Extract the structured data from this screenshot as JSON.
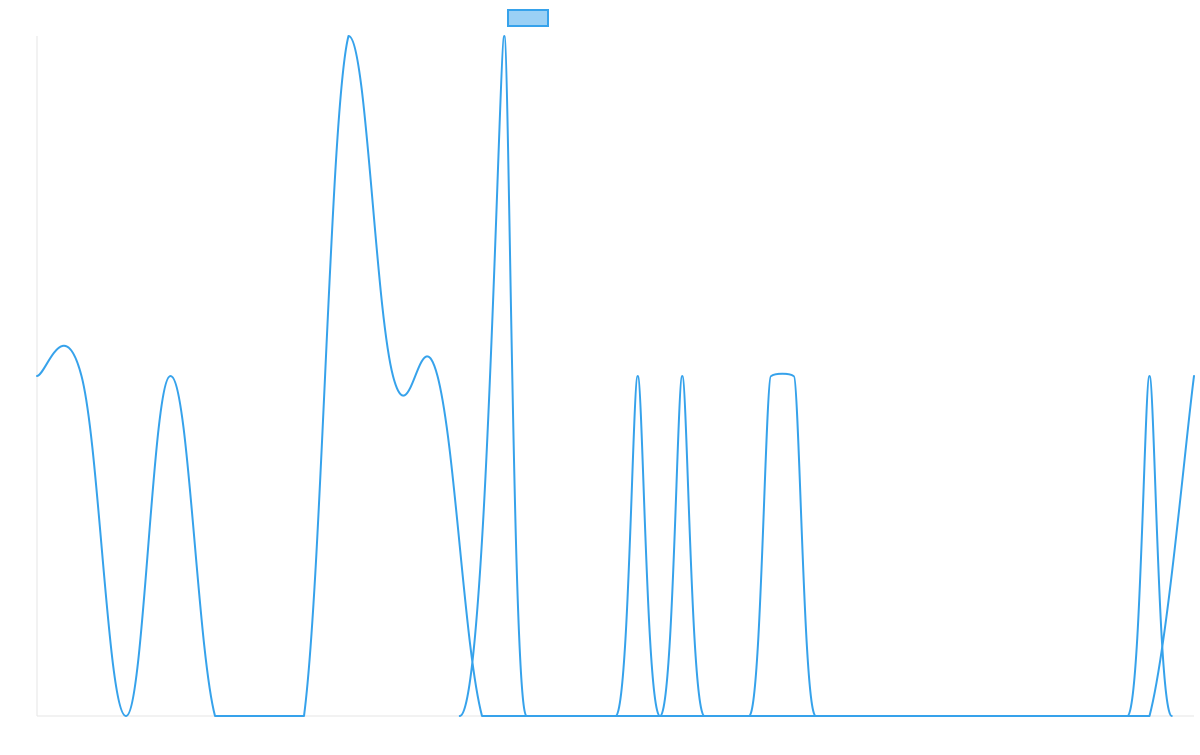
{
  "chart_data": {
    "type": "line",
    "title": "",
    "xlabel": "",
    "ylabel": "",
    "ylim": [
      0,
      2
    ],
    "grid": false,
    "legend_placement": "top-center",
    "x": [
      0,
      1,
      2,
      3,
      4,
      5,
      6,
      7,
      8,
      9,
      10,
      11,
      12,
      13,
      14,
      15,
      16,
      17,
      18,
      19,
      20,
      21,
      22,
      23,
      24,
      25,
      26
    ],
    "series": [
      {
        "name": "",
        "values": [
          1,
          1,
          0,
          1,
          0,
          0,
          0,
          2,
          1,
          1,
          0,
          0,
          0,
          0,
          0,
          0,
          0,
          0,
          0,
          0,
          0,
          0,
          0,
          0,
          0,
          0,
          1
        ],
        "color": "#36a2eb",
        "fill": "rgba(54,162,235,0.5)"
      }
    ],
    "smooth_spikes": [
      {
        "peak_x": 10.5,
        "peak_y": 2,
        "base_left_x": 9.5,
        "base_right_x": 11.0
      },
      {
        "peak_x": 13.5,
        "peak_y": 1,
        "base_left_x": 13.0,
        "base_right_x": 14.0
      },
      {
        "peak_x": 14.5,
        "peak_y": 1,
        "base_left_x": 14.0,
        "base_right_x": 15.0
      },
      {
        "peak_x": 16.5,
        "peak_y": 1,
        "plateau_to_x": 17.0,
        "base_left_x": 16.0,
        "base_right_x": 17.5
      },
      {
        "peak_x": 25.0,
        "peak_y": 1,
        "base_left_x": 24.5,
        "base_right_x": 25.5
      }
    ]
  }
}
